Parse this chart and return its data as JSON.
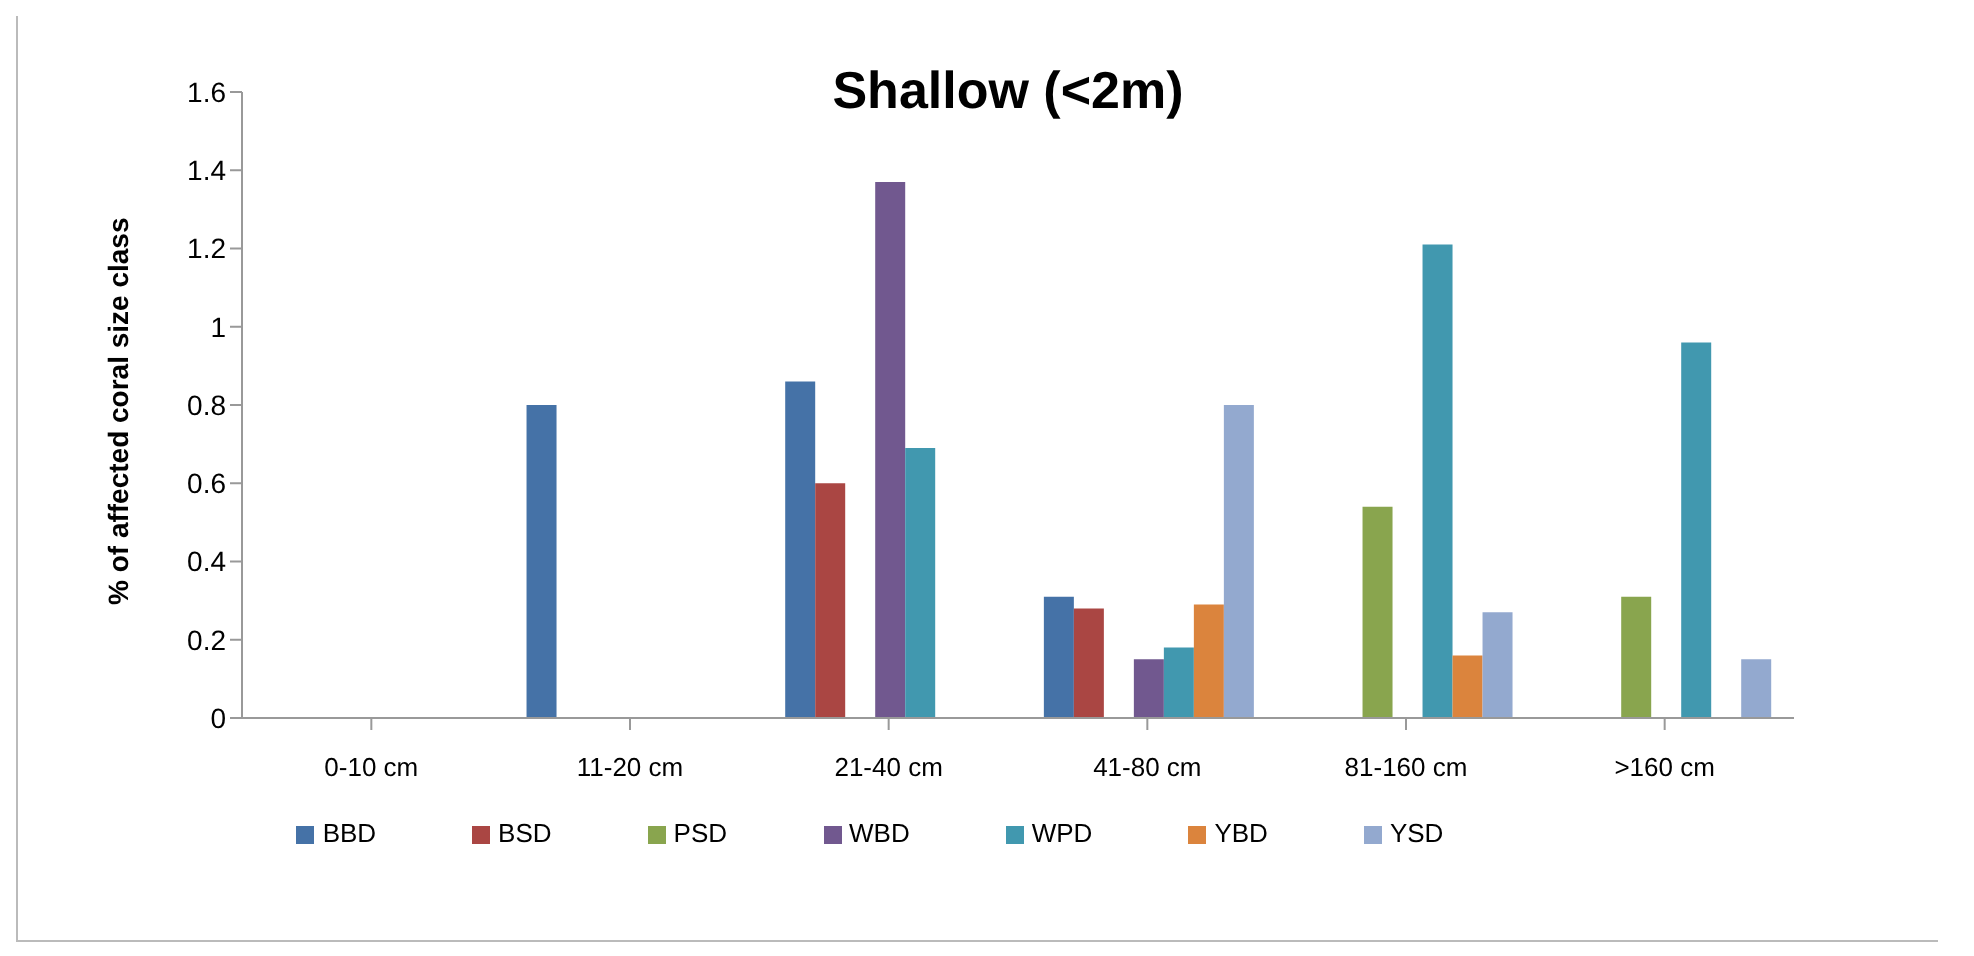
{
  "chart_data": {
    "type": "bar",
    "title": "Shallow (<2m)",
    "ylabel": "% of affected coral size class",
    "categories": [
      "0-10 cm",
      "11-20 cm",
      "21-40 cm",
      "41-80 cm",
      "81-160 cm",
      ">160 cm"
    ],
    "series": [
      {
        "name": "BBD",
        "color": "#4572a7",
        "values": [
          null,
          0.8,
          0.86,
          0.31,
          null,
          null
        ]
      },
      {
        "name": "BSD",
        "color": "#aa4643",
        "values": [
          null,
          null,
          0.6,
          0.28,
          null,
          null
        ]
      },
      {
        "name": "PSD",
        "color": "#89a54e",
        "values": [
          null,
          null,
          null,
          null,
          0.54,
          0.31
        ]
      },
      {
        "name": "WBD",
        "color": "#71588f",
        "values": [
          null,
          null,
          1.37,
          0.15,
          null,
          null
        ]
      },
      {
        "name": "WPD",
        "color": "#4198af",
        "values": [
          null,
          null,
          0.69,
          0.18,
          1.21,
          0.96
        ]
      },
      {
        "name": "YBD",
        "color": "#db843d",
        "values": [
          null,
          null,
          null,
          0.29,
          0.16,
          null
        ]
      },
      {
        "name": "YSD",
        "color": "#93a9cf",
        "values": [
          null,
          null,
          null,
          0.8,
          0.27,
          0.15
        ]
      }
    ],
    "ylim": [
      0,
      1.6
    ],
    "yticks": [
      0,
      0.2,
      0.4,
      0.6,
      0.8,
      1,
      1.2,
      1.4,
      1.6
    ],
    "grid": false,
    "legend": "bottom"
  }
}
